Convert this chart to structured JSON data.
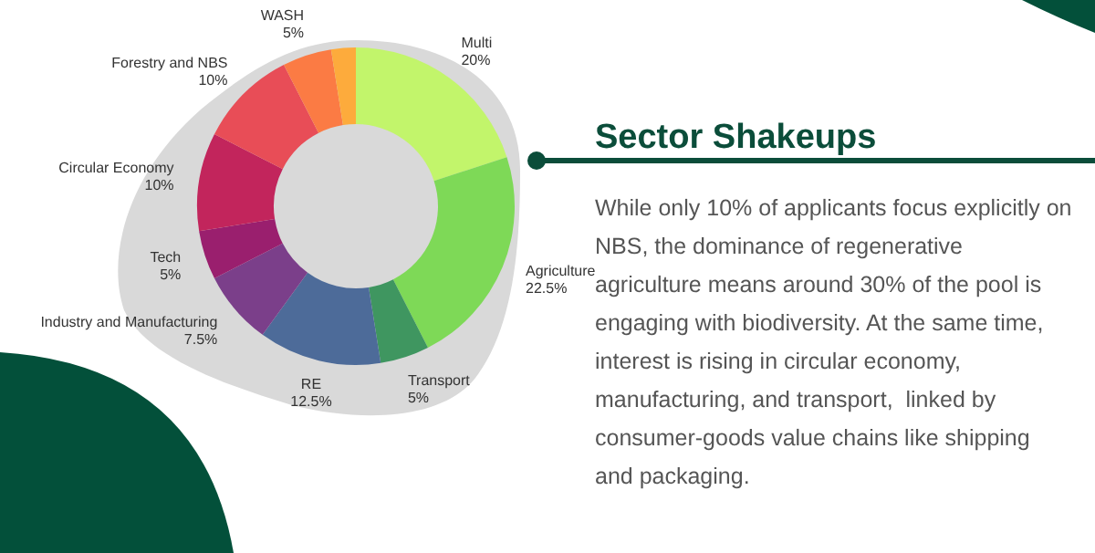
{
  "chart_data": {
    "type": "donut",
    "title": "Sector Shakeups",
    "categories": [
      "Multi",
      "Agriculture",
      "Transport",
      "RE",
      "Industry and Manufacturing",
      "Tech",
      "Circular Economy",
      "Forestry and NBS",
      "WASH",
      null
    ],
    "values": [
      20,
      22.5,
      5,
      12.5,
      7.5,
      5,
      10,
      10,
      5,
      2.5
    ],
    "colors": [
      "#c2f56b",
      "#7ed957",
      "#3f9660",
      "#4d6b99",
      "#7b3f8a",
      "#9a1f6e",
      "#c2255c",
      "#e84d57",
      "#fb7b44",
      "#fdab3c"
    ],
    "value_labels": [
      "20%",
      "22.5%",
      "5%",
      "12.5%",
      "7.5%",
      "5%",
      "10%",
      "10%",
      "5%",
      null
    ],
    "annotations": [
      "While only 10% of applicants focus explicitly on NBS, the dominance of regenerative agriculture means around 30% of the pool is engaging with biodiversity. At the same time, interest is rising in circular economy,  manufacturing, and transport,  linked by consumer-goods value chains like shipping and packaging."
    ]
  }
}
